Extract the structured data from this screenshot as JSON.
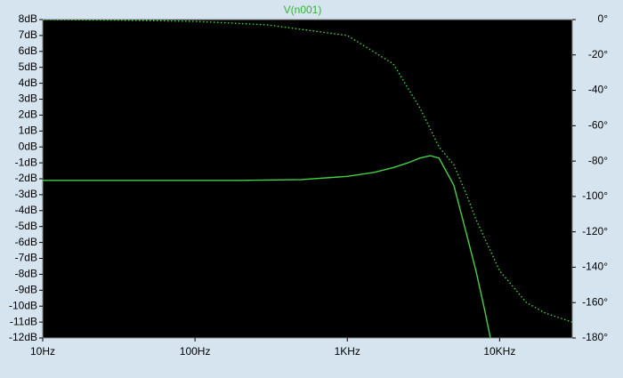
{
  "chart_data": {
    "type": "line",
    "title": "V(n001)",
    "xscale": "log",
    "xlim": [
      10,
      30000
    ],
    "xticks": [
      {
        "value": 10,
        "label": "10Hz"
      },
      {
        "value": 100,
        "label": "100Hz"
      },
      {
        "value": 1000,
        "label": "1KHz"
      },
      {
        "value": 10000,
        "label": "10KHz"
      }
    ],
    "ylim": [
      -12,
      8
    ],
    "yticks": [
      {
        "value": 8,
        "label": "8dB"
      },
      {
        "value": 7,
        "label": "7dB"
      },
      {
        "value": 6,
        "label": "6dB"
      },
      {
        "value": 5,
        "label": "5dB"
      },
      {
        "value": 4,
        "label": "4dB"
      },
      {
        "value": 3,
        "label": "3dB"
      },
      {
        "value": 2,
        "label": "2dB"
      },
      {
        "value": 1,
        "label": "1dB"
      },
      {
        "value": 0,
        "label": "0dB"
      },
      {
        "value": -1,
        "label": "-1dB"
      },
      {
        "value": -2,
        "label": "-2dB"
      },
      {
        "value": -3,
        "label": "-3dB"
      },
      {
        "value": -4,
        "label": "-4dB"
      },
      {
        "value": -5,
        "label": "-5dB"
      },
      {
        "value": -6,
        "label": "-6dB"
      },
      {
        "value": -7,
        "label": "-7dB"
      },
      {
        "value": -8,
        "label": "-8dB"
      },
      {
        "value": -9,
        "label": "-9dB"
      },
      {
        "value": -10,
        "label": "-10dB"
      },
      {
        "value": -11,
        "label": "-11dB"
      },
      {
        "value": -12,
        "label": "-12dB"
      }
    ],
    "y2lim": [
      -180,
      0
    ],
    "y2ticks": [
      {
        "value": 0,
        "label": "0°"
      },
      {
        "value": -20,
        "label": "-20°"
      },
      {
        "value": -40,
        "label": "-40°"
      },
      {
        "value": -60,
        "label": "-60°"
      },
      {
        "value": -80,
        "label": "-80°"
      },
      {
        "value": -100,
        "label": "-100°"
      },
      {
        "value": -120,
        "label": "-120°"
      },
      {
        "value": -140,
        "label": "-140°"
      },
      {
        "value": -160,
        "label": "-160°"
      },
      {
        "value": -180,
        "label": "-180°"
      }
    ],
    "series": [
      {
        "color": "#44d044",
        "dash": "solid",
        "x": [
          10,
          20,
          50,
          100,
          200,
          500,
          1000,
          1500,
          2000,
          2500,
          3000,
          3500,
          4000,
          5000,
          6000,
          7000,
          8000,
          8700
        ],
        "values": [
          -2.1,
          -2.1,
          -2.1,
          -2.1,
          -2.1,
          -2.05,
          -1.85,
          -1.6,
          -1.3,
          -1.0,
          -0.7,
          -0.55,
          -0.7,
          -2.4,
          -5.3,
          -7.8,
          -10.3,
          -12
        ]
      },
      {
        "color": "#44d044",
        "dash": "dotted",
        "axis": "y2",
        "x": [
          10,
          30,
          100,
          300,
          1000,
          2000,
          3000,
          4000,
          5000,
          6000,
          7000,
          10000,
          15000,
          20000,
          30000
        ],
        "values": [
          0,
          -0.3,
          -1,
          -3,
          -9,
          -25,
          -50,
          -72,
          -82,
          -98,
          -113,
          -142,
          -160,
          -166,
          -171
        ]
      }
    ]
  }
}
